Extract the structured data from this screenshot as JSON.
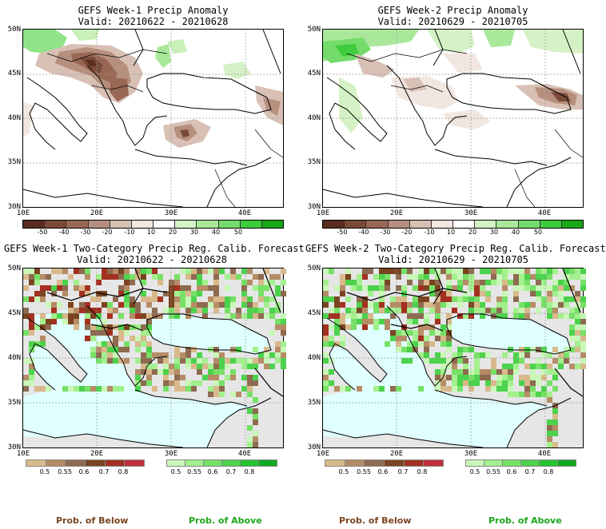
{
  "panels": [
    {
      "title": "GEFS Week-1 Precip Anomaly",
      "valid": "Valid: 20210622 - 20210628"
    },
    {
      "title": "GEFS Week-2 Precip Anomaly",
      "valid": "Valid: 20210629 - 20210705"
    },
    {
      "title": "GEFS Week-1 Two-Category Precip Reg. Calib. Forecast",
      "valid": "Valid: 20210622 - 20210628"
    },
    {
      "title": "GEFS Week-2 Two-Category Precip Reg. Calib. Forecast",
      "valid": "Valid: 20210629 - 20210705"
    }
  ],
  "lat_labels": [
    "50N",
    "45N",
    "40N",
    "35N",
    "30N"
  ],
  "lon_labels": [
    "10E",
    "20E",
    "30E",
    "40E"
  ],
  "anomaly_scale": {
    "labels": [
      "-50",
      "-40",
      "-30",
      "-20",
      "-10",
      "10",
      "20",
      "30",
      "40",
      "50"
    ],
    "colors": [
      "#5a2d1f",
      "#7a4a38",
      "#996855",
      "#b78f7e",
      "#d8c0b5",
      "#f2e6e0",
      "#ffffff",
      "#d5f2c6",
      "#a9e89a",
      "#74dc6a",
      "#3ecb3e",
      "#19a619"
    ]
  },
  "prob_scale": {
    "below_labels": [
      "0.5",
      "0.55",
      "0.6",
      "0.7",
      "0.8"
    ],
    "above_labels": [
      "0.5",
      "0.55",
      "0.6",
      "0.7",
      "0.8"
    ],
    "below_colors": [
      "#d9b98c",
      "#b58c66",
      "#8e6b50",
      "#7a4420",
      "#a33020",
      "#c0303a"
    ],
    "above_colors": [
      "#c8f7b8",
      "#a3f08e",
      "#77e066",
      "#4cd24c",
      "#22c32e",
      "#10a820"
    ]
  },
  "legend": {
    "below": "Prob. of Below",
    "above": "Prob. of Above"
  },
  "colors": {
    "below_text": "#7a4420",
    "above_text": "#1aa61a",
    "sea": "#e0ffff",
    "no_data": "#e6e6e6"
  }
}
